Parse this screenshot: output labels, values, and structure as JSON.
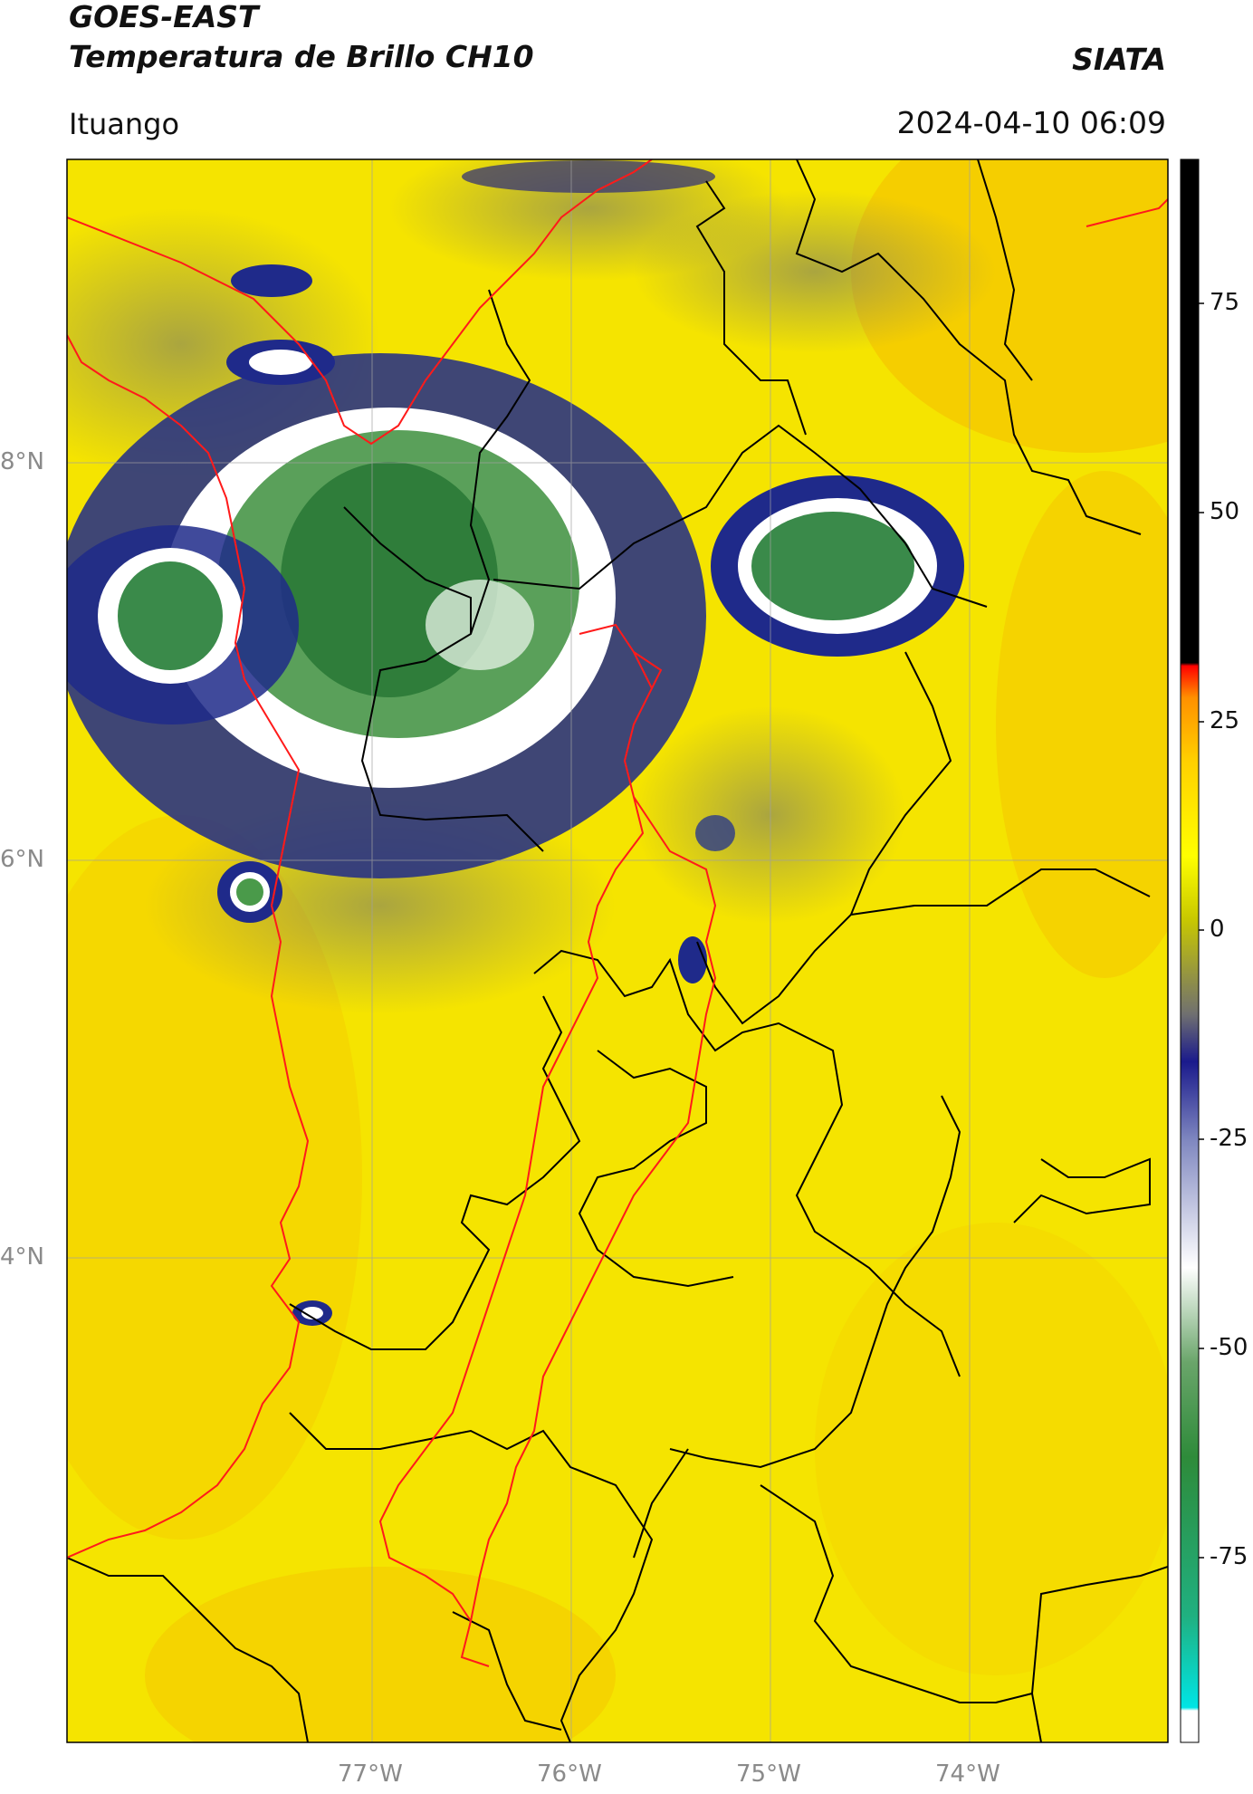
{
  "header": {
    "title_line1": "GOES-EAST",
    "title_line2": "Temperatura de Brillo CH10",
    "brand": "SIATA",
    "location": "Ituango",
    "datetime": "2024-04-10 06:09"
  },
  "axes": {
    "lat_ticks": [
      "8°N",
      "6°N",
      "4°N"
    ],
    "lon_ticks": [
      "77°W",
      "76°W",
      "75°W",
      "74°W"
    ]
  },
  "colorbar": {
    "ticks": [
      "75",
      "50",
      "25",
      "0",
      "-25",
      "-50",
      "-75"
    ],
    "colors": [
      "#00e5e5",
      "#2e8b57",
      "#3a7d2e",
      "#ffffff",
      "#1a1a8c",
      "#ffff00",
      "#ff8c00",
      "#ff0000",
      "#000000"
    ]
  },
  "colors": {
    "background_field": "#f5e400",
    "warm_field": "#f5b800",
    "cloud_cold": "#3a7d3a",
    "cloud_edge": "#1f2a8a",
    "boundary_department": "#ff1a1a",
    "boundary_municipal": "#000000"
  }
}
